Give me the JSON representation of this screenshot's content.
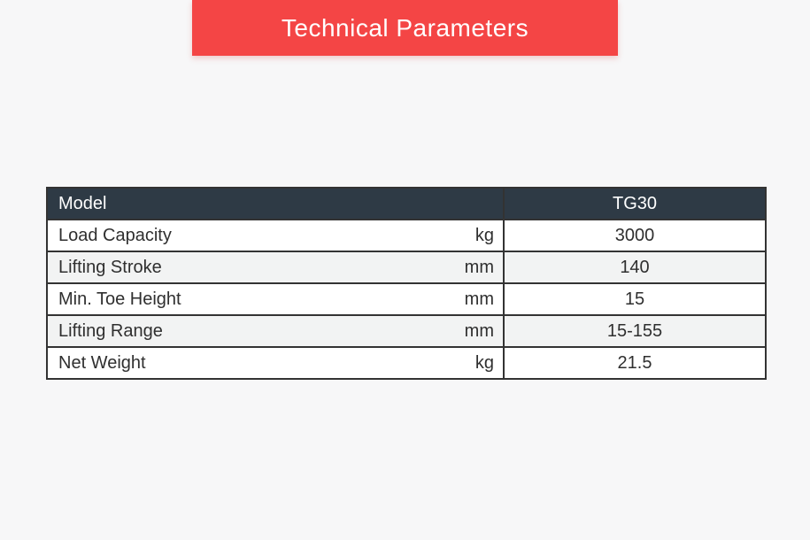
{
  "banner": {
    "title": "Technical Parameters",
    "bg_color": "#f44545",
    "text_color": "#ffffff"
  },
  "table": {
    "header": {
      "model_label": "Model",
      "model_value": "TG30"
    },
    "rows": [
      {
        "label": "Load Capacity",
        "unit": "kg",
        "value": "3000"
      },
      {
        "label": "Lifting Stroke",
        "unit": "mm",
        "value": "140"
      },
      {
        "label": "Min. Toe Height",
        "unit": "mm",
        "value": "15"
      },
      {
        "label": "Lifting Range",
        "unit": "mm",
        "value": "15-155"
      },
      {
        "label": "Net Weight",
        "unit": "kg",
        "value": "21.5"
      }
    ],
    "colors": {
      "header_bg": "#2e3a45",
      "row_alt_bg": "#f2f3f3",
      "row_bg": "#ffffff",
      "border": "#333333",
      "text": "#2f2f2f"
    }
  }
}
